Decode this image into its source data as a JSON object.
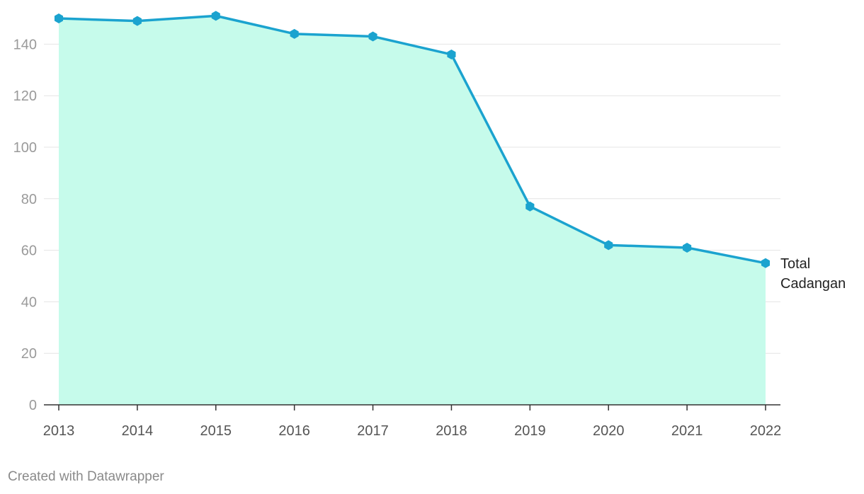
{
  "chart_data": {
    "type": "area",
    "x": [
      "2013",
      "2014",
      "2015",
      "2016",
      "2017",
      "2018",
      "2019",
      "2020",
      "2021",
      "2022"
    ],
    "series": [
      {
        "name": "Total Cadangan",
        "values": [
          150,
          149,
          151,
          144,
          143,
          136,
          77,
          62,
          61,
          55
        ]
      }
    ],
    "ylim": [
      0,
      150
    ],
    "yticks": [
      0,
      20,
      40,
      60,
      80,
      100,
      120,
      140
    ],
    "grid": true,
    "legend": "end-of-line label",
    "colors": {
      "line": "#1ba3cf",
      "fill": "#c6fbeb",
      "grid": "#e4e4e4",
      "axis": "#333333"
    }
  },
  "series_label_lines": [
    "Total",
    "Cadangan"
  ],
  "footer": {
    "credit": "Created with Datawrapper"
  }
}
